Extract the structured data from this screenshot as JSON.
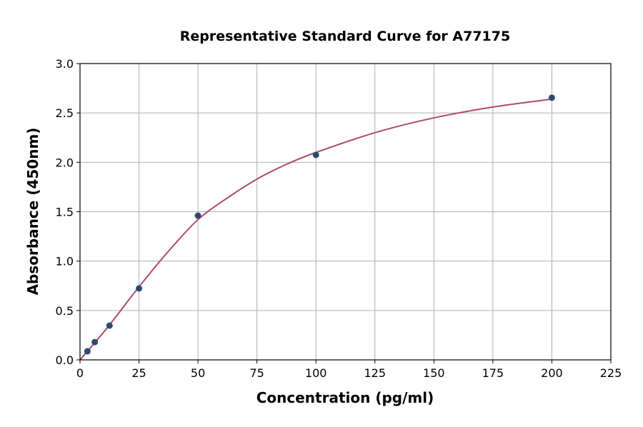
{
  "chart_data": {
    "type": "scatter",
    "title": "Representative Standard Curve for A77175",
    "xlabel": "Concentration (pg/ml)",
    "ylabel": "Absorbance (450nm)",
    "xlim": [
      0,
      225
    ],
    "ylim": [
      0,
      3.0
    ],
    "xticks": [
      "0",
      "25",
      "50",
      "75",
      "100",
      "125",
      "150",
      "175",
      "200",
      "225"
    ],
    "yticks": [
      "0.0",
      "0.5",
      "1.0",
      "1.5",
      "2.0",
      "2.5",
      "3.0"
    ],
    "grid": true,
    "points": {
      "x": [
        3.125,
        6.25,
        12.5,
        25,
        50,
        100,
        200
      ],
      "y": [
        0.087,
        0.18,
        0.347,
        0.723,
        1.46,
        2.075,
        2.654
      ]
    },
    "fit_curve": {
      "x": [
        0,
        5,
        10,
        15,
        25,
        37.5,
        50,
        62.5,
        75,
        87.5,
        100,
        125,
        150,
        175,
        200
      ],
      "y": [
        0.0,
        0.14,
        0.28,
        0.43,
        0.74,
        1.1,
        1.42,
        1.64,
        1.83,
        1.98,
        2.1,
        2.3,
        2.45,
        2.56,
        2.64
      ]
    },
    "colors": {
      "points": "#2e4a6e",
      "curve": "#b04a6e",
      "grid": "#b0b0b0"
    }
  }
}
